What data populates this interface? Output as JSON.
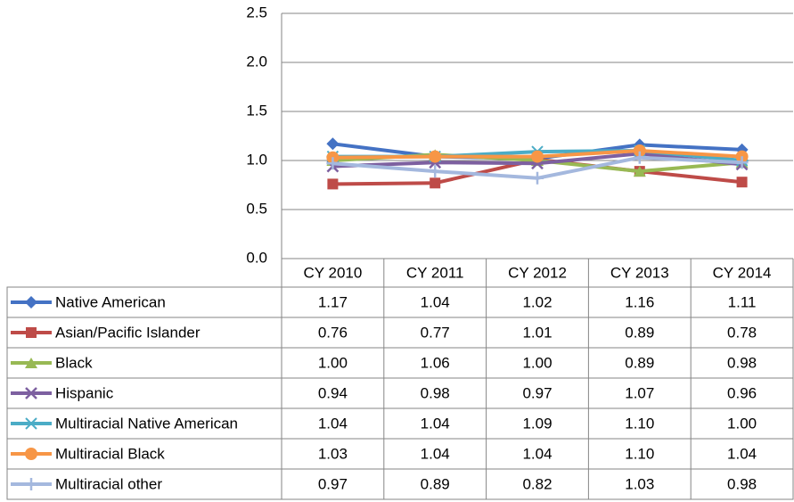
{
  "chart_data": {
    "type": "line",
    "categories": [
      "CY 2010",
      "CY 2011",
      "CY 2012",
      "CY 2013",
      "CY 2014"
    ],
    "ylim": [
      0,
      2.5
    ],
    "yticks": [
      {
        "value": 0,
        "label": "0.0"
      },
      0.5,
      {
        "value": 1,
        "label": "1.0"
      },
      1.5,
      {
        "value": 2,
        "label": "2.0"
      },
      2.5
    ],
    "grid": true,
    "series": [
      {
        "name": "Native American",
        "color": "#4472c4",
        "marker": "diamond",
        "values": [
          1.17,
          1.04,
          1.02,
          1.16,
          1.11
        ],
        "value_labels": [
          "1.17",
          "1.04",
          "1.02",
          "1.16",
          "1.11"
        ]
      },
      {
        "name": "Asian/Pacific Islander",
        "color": "#be4b48",
        "marker": "square",
        "values": [
          0.76,
          0.77,
          1.01,
          0.89,
          0.78
        ],
        "value_labels": [
          "0.76",
          "0.77",
          "1.01",
          "0.89",
          "0.78"
        ]
      },
      {
        "name": "Black",
        "color": "#98b954",
        "marker": "triangle",
        "values": [
          1,
          1.06,
          1,
          0.89,
          0.98
        ],
        "value_labels": [
          "1.00",
          "1.06",
          "1.00",
          "0.89",
          "0.98"
        ]
      },
      {
        "name": "Hispanic",
        "color": "#7d60a0",
        "marker": "x",
        "values": [
          0.94,
          0.98,
          0.97,
          1.07,
          0.96
        ],
        "value_labels": [
          "0.94",
          "0.98",
          "0.97",
          "1.07",
          "0.96"
        ]
      },
      {
        "name": "Multiracial Native American",
        "color": "#4bacc6",
        "marker": "star",
        "values": [
          1.04,
          1.04,
          1.09,
          1.1,
          1
        ],
        "value_labels": [
          "1.04",
          "1.04",
          "1.09",
          "1.10",
          "1.00"
        ]
      },
      {
        "name": "Multiracial Black",
        "color": "#f79646",
        "marker": "circle",
        "values": [
          1.03,
          1.04,
          1.04,
          1.1,
          1.04
        ],
        "value_labels": [
          "1.03",
          "1.04",
          "1.04",
          "1.10",
          "1.04"
        ]
      },
      {
        "name": "Multiracial other",
        "color": "#a4b8de",
        "marker": "plus",
        "values": [
          0.97,
          0.89,
          0.82,
          1.03,
          0.98
        ],
        "value_labels": [
          "0.97",
          "0.89",
          "0.82",
          "1.03",
          "0.98"
        ]
      }
    ]
  }
}
